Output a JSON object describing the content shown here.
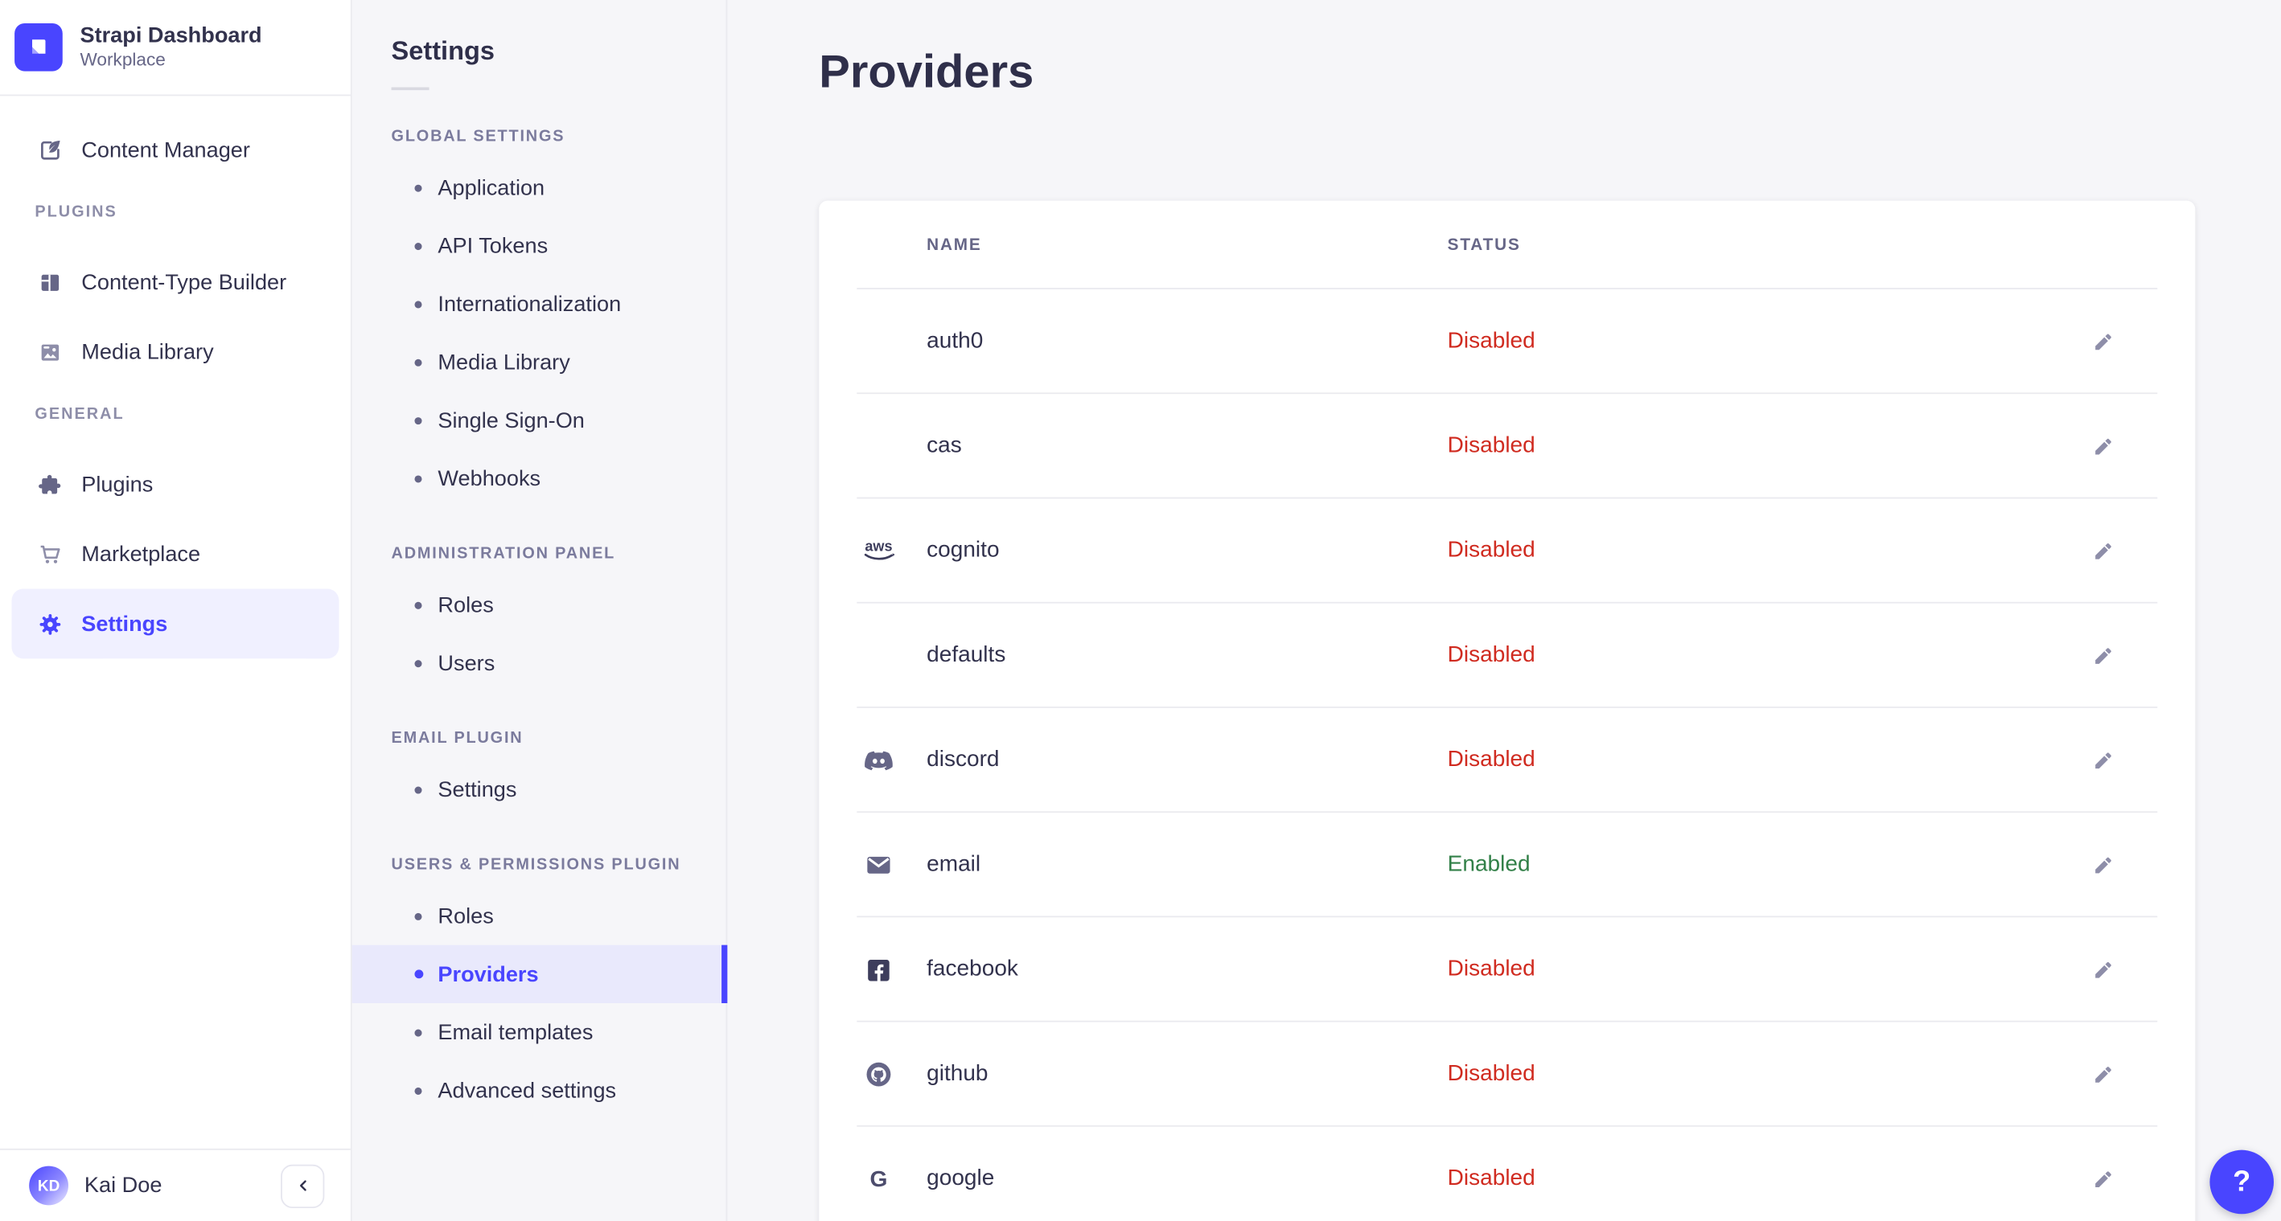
{
  "brand": {
    "title": "Strapi Dashboard",
    "subtitle": "Workplace"
  },
  "sidebar": {
    "items": [
      {
        "label": "Content Manager",
        "icon": "content-manager-icon"
      }
    ],
    "sections": [
      {
        "label": "PLUGINS",
        "items": [
          {
            "label": "Content-Type Builder",
            "icon": "content-type-builder-icon"
          },
          {
            "label": "Media Library",
            "icon": "media-library-icon"
          }
        ]
      },
      {
        "label": "GENERAL",
        "items": [
          {
            "label": "Plugins",
            "icon": "puzzle-icon"
          },
          {
            "label": "Marketplace",
            "icon": "cart-icon"
          },
          {
            "label": "Settings",
            "icon": "gear-icon",
            "active": true
          }
        ]
      }
    ],
    "user": {
      "initials": "KD",
      "name": "Kai Doe"
    }
  },
  "subnav": {
    "title": "Settings",
    "groups": [
      {
        "label": "GLOBAL SETTINGS",
        "items": [
          "Application",
          "API Tokens",
          "Internationalization",
          "Media Library",
          "Single Sign-On",
          "Webhooks"
        ]
      },
      {
        "label": "ADMINISTRATION PANEL",
        "items": [
          "Roles",
          "Users"
        ]
      },
      {
        "label": "EMAIL PLUGIN",
        "items": [
          "Settings"
        ]
      },
      {
        "label": "USERS & PERMISSIONS PLUGIN",
        "items": [
          "Roles",
          "Providers",
          "Email templates",
          "Advanced settings"
        ],
        "active_item": "Providers"
      }
    ]
  },
  "main": {
    "title": "Providers",
    "table": {
      "columns": [
        "NAME",
        "STATUS"
      ],
      "rows": [
        {
          "name": "auth0",
          "icon": null,
          "status": "Disabled"
        },
        {
          "name": "cas",
          "icon": null,
          "status": "Disabled"
        },
        {
          "name": "cognito",
          "icon": "aws-icon",
          "status": "Disabled"
        },
        {
          "name": "defaults",
          "icon": null,
          "status": "Disabled"
        },
        {
          "name": "discord",
          "icon": "discord-icon",
          "status": "Disabled"
        },
        {
          "name": "email",
          "icon": "email-icon",
          "status": "Enabled"
        },
        {
          "name": "facebook",
          "icon": "facebook-icon",
          "status": "Disabled"
        },
        {
          "name": "github",
          "icon": "github-icon",
          "status": "Disabled"
        },
        {
          "name": "google",
          "icon": "google-icon",
          "status": "Disabled"
        }
      ]
    }
  },
  "help": {
    "label": "?"
  },
  "colors": {
    "primary": "#4945ff",
    "danger": "#d02b20",
    "success": "#328048",
    "background": "#f6f6f9",
    "border": "#eaeaef"
  }
}
